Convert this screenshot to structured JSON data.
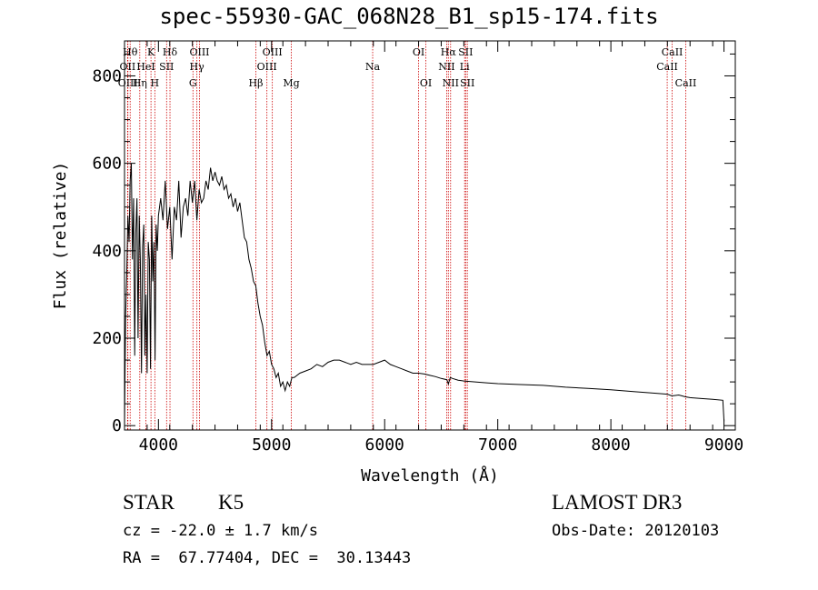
{
  "colors": {
    "axis": "#000000",
    "spectrum": "#000000",
    "line_marker": "#cc0000",
    "background": "#ffffff"
  },
  "chart_data": {
    "type": "line",
    "title": "spec-55930-GAC_068N28_B1_sp15-174.fits",
    "xlabel": "Wavelength (Å)",
    "ylabel": "Flux (relative)",
    "xlim": [
      3700,
      9100
    ],
    "ylim": [
      -10,
      880
    ],
    "xticks": [
      4000,
      5000,
      6000,
      7000,
      8000,
      9000
    ],
    "xtick_labels": [
      "4000",
      "5000",
      "6000",
      "7000",
      "8000",
      "9000"
    ],
    "yticks": [
      0,
      200,
      400,
      600,
      800
    ],
    "ytick_labels": [
      "0",
      "200",
      "400",
      "600",
      "800"
    ],
    "grid": false,
    "series": [
      {
        "x": [
          3700,
          3705,
          3710,
          3720,
          3730,
          3740,
          3750,
          3760,
          3770,
          3780,
          3790,
          3800,
          3810,
          3820,
          3830,
          3840,
          3850,
          3860,
          3870,
          3880,
          3890,
          3900,
          3910,
          3920,
          3930,
          3940,
          3950,
          3960,
          3970,
          3980,
          3990,
          4000,
          4020,
          4040,
          4060,
          4080,
          4100,
          4120,
          4140,
          4160,
          4180,
          4200,
          4220,
          4240,
          4260,
          4280,
          4300,
          4320,
          4340,
          4360,
          4380,
          4400,
          4420,
          4440,
          4460,
          4480,
          4500,
          4520,
          4540,
          4560,
          4580,
          4600,
          4620,
          4640,
          4660,
          4680,
          4700,
          4720,
          4740,
          4760,
          4780,
          4800,
          4820,
          4840,
          4860,
          4880,
          4900,
          4920,
          4940,
          4960,
          4980,
          5000,
          5020,
          5040,
          5060,
          5080,
          5100,
          5120,
          5140,
          5160,
          5180,
          5200,
          5250,
          5300,
          5350,
          5400,
          5450,
          5500,
          5550,
          5600,
          5650,
          5700,
          5750,
          5800,
          5850,
          5900,
          5950,
          6000,
          6050,
          6100,
          6150,
          6200,
          6250,
          6300,
          6350,
          6400,
          6450,
          6500,
          6550,
          6563,
          6580,
          6600,
          6650,
          6700,
          6800,
          6900,
          7000,
          7200,
          7400,
          7600,
          7800,
          8000,
          8200,
          8400,
          8500,
          8540,
          8600,
          8660,
          8700,
          8800,
          8900,
          8990,
          9000
        ],
        "y": [
          0,
          130,
          250,
          350,
          480,
          420,
          560,
          600,
          380,
          520,
          160,
          440,
          520,
          200,
          480,
          380,
          120,
          410,
          460,
          160,
          300,
          120,
          420,
          380,
          130,
          480,
          330,
          420,
          150,
          460,
          400,
          480,
          520,
          470,
          560,
          450,
          500,
          380,
          500,
          470,
          560,
          430,
          500,
          520,
          480,
          560,
          510,
          560,
          470,
          540,
          510,
          520,
          560,
          540,
          590,
          560,
          580,
          560,
          550,
          570,
          540,
          550,
          520,
          530,
          500,
          520,
          490,
          510,
          470,
          430,
          420,
          380,
          360,
          330,
          320,
          280,
          250,
          230,
          190,
          160,
          170,
          140,
          130,
          110,
          120,
          90,
          100,
          80,
          100,
          90,
          110,
          110,
          120,
          125,
          130,
          140,
          135,
          145,
          150,
          150,
          145,
          140,
          145,
          140,
          140,
          140,
          145,
          150,
          140,
          135,
          130,
          125,
          120,
          120,
          118,
          115,
          112,
          108,
          105,
          95,
          110,
          108,
          104,
          102,
          100,
          98,
          96,
          94,
          92,
          88,
          85,
          82,
          78,
          74,
          72,
          68,
          70,
          66,
          64,
          62,
          60,
          58,
          10
        ]
      }
    ],
    "lines": [
      {
        "name": "OII",
        "x": 3727,
        "row": 1
      },
      {
        "name": "OIII",
        "x": 3730,
        "row": 2
      },
      {
        "name": "Hθ",
        "x": 3750,
        "row": 0
      },
      {
        "name": "Hη",
        "x": 3835,
        "row": 2
      },
      {
        "name": "HeI",
        "x": 3889,
        "row": 1
      },
      {
        "name": "K",
        "x": 3934,
        "row": 0
      },
      {
        "name": "H",
        "x": 3968,
        "row": 2
      },
      {
        "name": "SII",
        "x": 4072,
        "row": 1
      },
      {
        "name": "Hδ",
        "x": 4102,
        "row": 0
      },
      {
        "name": "G",
        "x": 4305,
        "row": 2
      },
      {
        "name": "Hγ",
        "x": 4340,
        "row": 1
      },
      {
        "name": "OIII",
        "x": 4363,
        "row": 0
      },
      {
        "name": "Hβ",
        "x": 4861,
        "row": 2
      },
      {
        "name": "OIII",
        "x": 4959,
        "row": 1
      },
      {
        "name": "OIII",
        "x": 5007,
        "row": 0
      },
      {
        "name": "Mg",
        "x": 5175,
        "row": 2
      },
      {
        "name": "Na",
        "x": 5894,
        "row": 1
      },
      {
        "name": "OI",
        "x": 6300,
        "row": 0
      },
      {
        "name": "OI",
        "x": 6364,
        "row": 2
      },
      {
        "name": "NII",
        "x": 6548,
        "row": 1
      },
      {
        "name": "Hα",
        "x": 6563,
        "row": 0
      },
      {
        "name": "NII",
        "x": 6583,
        "row": 2
      },
      {
        "name": "Li",
        "x": 6707,
        "row": 1
      },
      {
        "name": "SII",
        "x": 6716,
        "row": 0
      },
      {
        "name": "SII",
        "x": 6731,
        "row": 2
      },
      {
        "name": "CaII",
        "x": 8498,
        "row": 1
      },
      {
        "name": "CaII",
        "x": 8542,
        "row": 0
      },
      {
        "name": "CaII",
        "x": 8662,
        "row": 2
      }
    ]
  },
  "info": {
    "class": "STAR",
    "subclass": "K5",
    "survey": "LAMOST DR3",
    "cz": "cz = -22.0 ± 1.7 km/s",
    "obs_date": "Obs-Date: 20120103",
    "radec": "RA =  67.77404, DEC =  30.13443"
  }
}
